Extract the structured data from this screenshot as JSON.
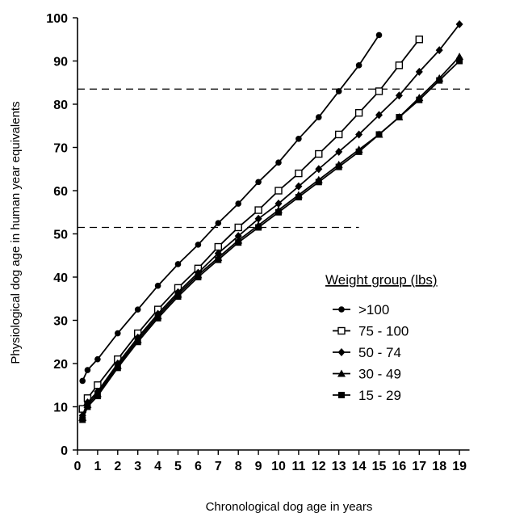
{
  "chart_data": {
    "type": "line",
    "title": "",
    "xlabel": "Chronological dog age in years",
    "ylabel": "Physiological dog age in human year equivalents",
    "xlim": [
      0,
      19.5
    ],
    "ylim": [
      0,
      100
    ],
    "x_ticks": [
      0,
      1,
      2,
      3,
      4,
      5,
      6,
      7,
      8,
      9,
      10,
      11,
      12,
      13,
      14,
      15,
      16,
      17,
      18,
      19
    ],
    "y_ticks": [
      0,
      10,
      20,
      30,
      40,
      50,
      60,
      70,
      80,
      90,
      100
    ],
    "grid": false,
    "legend": {
      "title": "Weight group (lbs)",
      "placement": "center-right"
    },
    "reference_lines": [
      {
        "y": 83.5,
        "x_range": [
          0,
          19.5
        ],
        "style": "dashed"
      },
      {
        "y": 51.5,
        "x_range": [
          0,
          14
        ],
        "style": "dashed"
      }
    ],
    "series": [
      {
        "name": ">100",
        "marker": "filled-circle",
        "x": [
          0.25,
          0.5,
          1,
          2,
          3,
          4,
          5,
          6,
          7,
          8,
          9,
          10,
          11,
          12,
          13,
          14,
          15
        ],
        "y": [
          16,
          18.5,
          21,
          27,
          32.5,
          38,
          43,
          47.5,
          52.5,
          57,
          62,
          66.5,
          72,
          77,
          83,
          89,
          96
        ]
      },
      {
        "name": "75 - 100",
        "marker": "open-square",
        "x": [
          0.25,
          0.5,
          1,
          2,
          3,
          4,
          5,
          6,
          7,
          8,
          9,
          10,
          11,
          12,
          13,
          14,
          15,
          16,
          17
        ],
        "y": [
          9.5,
          12,
          15,
          21,
          27,
          32.5,
          37.5,
          42,
          47,
          51.5,
          55.5,
          60,
          64,
          68.5,
          73,
          78,
          83,
          89,
          95
        ]
      },
      {
        "name": "50 - 74",
        "marker": "filled-diamond",
        "x": [
          0.25,
          0.5,
          1,
          2,
          3,
          4,
          5,
          6,
          7,
          8,
          9,
          10,
          11,
          12,
          13,
          14,
          15,
          16,
          17,
          18,
          19
        ],
        "y": [
          8,
          11,
          13.5,
          20,
          26,
          31.5,
          36.5,
          41,
          45.5,
          49.5,
          53.5,
          57,
          61,
          65,
          69,
          73,
          77.5,
          82,
          87.5,
          92.5,
          98.5
        ]
      },
      {
        "name": "30 - 49",
        "marker": "filled-triangle",
        "x": [
          0.25,
          0.5,
          1,
          2,
          3,
          4,
          5,
          6,
          7,
          8,
          9,
          10,
          11,
          12,
          13,
          14,
          15,
          16,
          17,
          18,
          19
        ],
        "y": [
          7.5,
          10.5,
          13,
          19.5,
          25.5,
          31,
          36,
          40.5,
          44.5,
          48.5,
          52,
          55.5,
          59,
          62.5,
          66,
          69.5,
          73,
          77,
          81.5,
          86,
          91
        ]
      },
      {
        "name": "15 - 29",
        "marker": "filled-square",
        "x": [
          0.25,
          0.5,
          1,
          2,
          3,
          4,
          5,
          6,
          7,
          8,
          9,
          10,
          11,
          12,
          13,
          14,
          15,
          16,
          17,
          18,
          19
        ],
        "y": [
          7,
          10,
          12.5,
          19,
          25,
          30.5,
          35.5,
          40,
          44,
          48,
          51.5,
          55,
          58.5,
          62,
          65.5,
          69,
          73,
          77,
          81,
          85.5,
          90
        ]
      }
    ]
  }
}
